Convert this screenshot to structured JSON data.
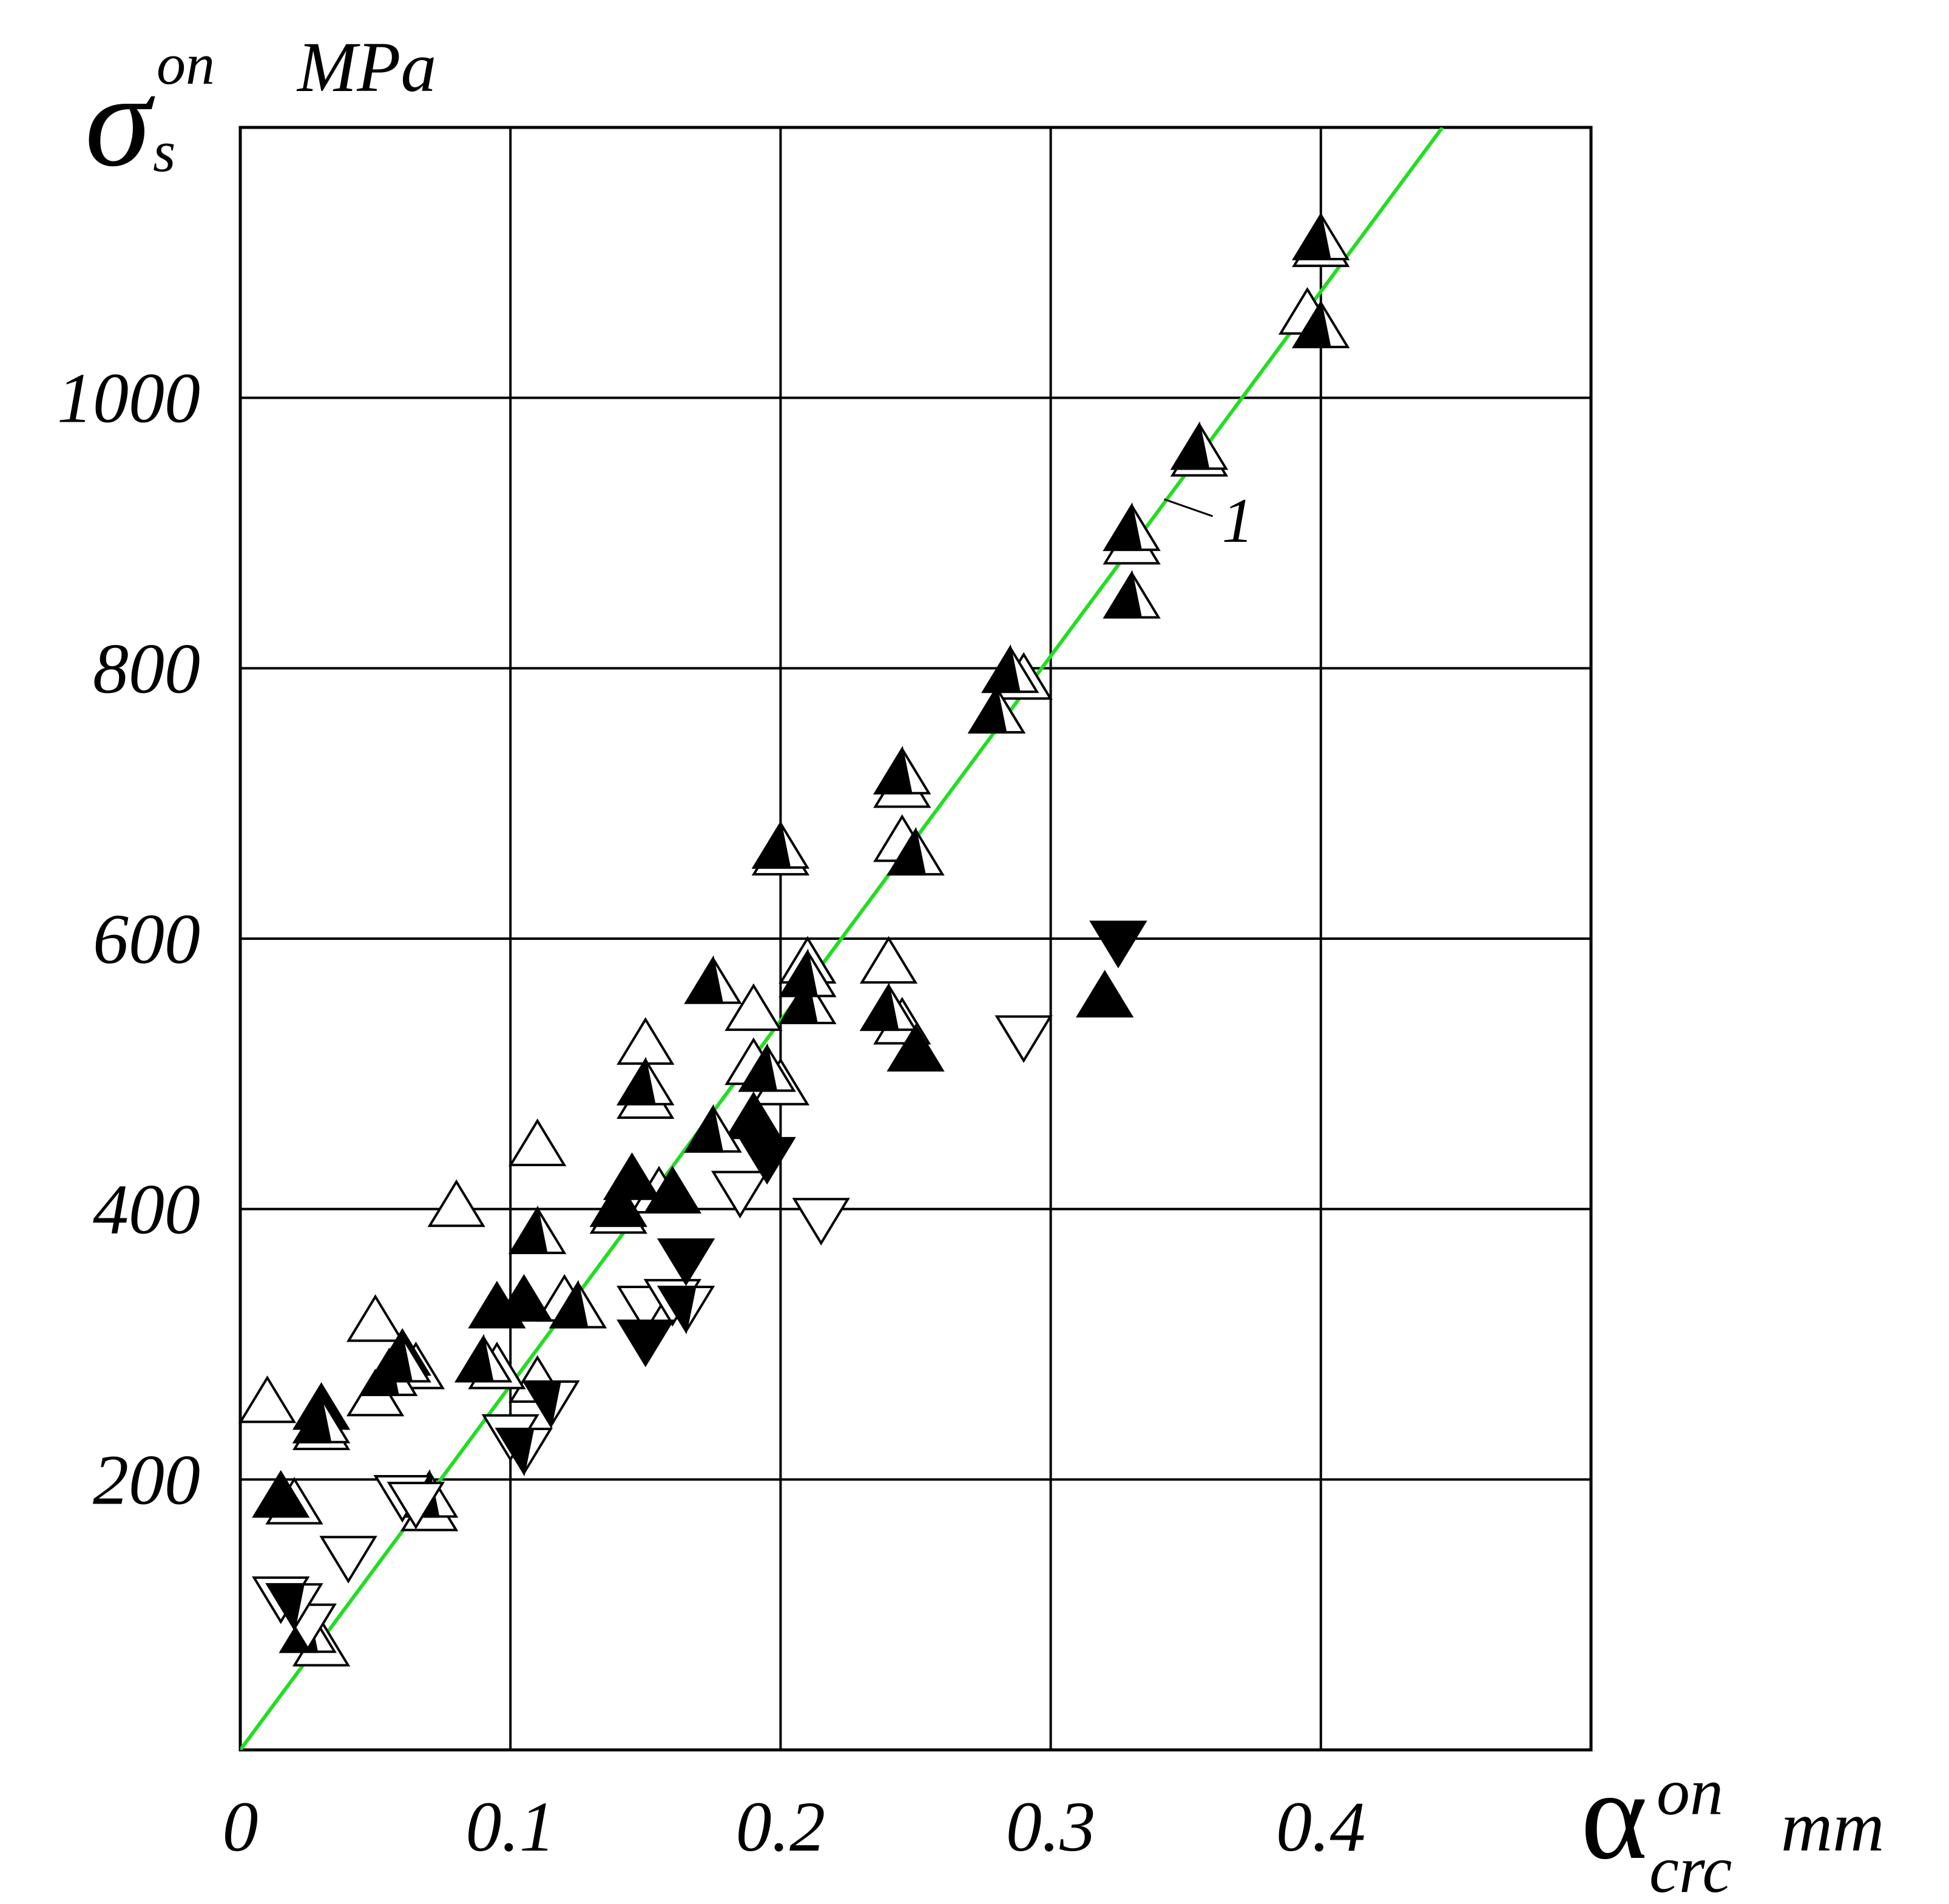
{
  "chart_data": {
    "type": "scatter",
    "y_axis": {
      "symbol": "σ",
      "subscript": "s",
      "superscript": "on",
      "unit": "MPa"
    },
    "x_axis": {
      "symbol": "α",
      "subscript": "crc",
      "superscript": "on",
      "unit": "mm"
    },
    "xlim": [
      0,
      0.5
    ],
    "ylim": [
      0,
      1200
    ],
    "x_ticks": [
      {
        "value": 0,
        "label": "0"
      },
      {
        "value": 0.1,
        "label": "0.1"
      },
      {
        "value": 0.2,
        "label": "0.2"
      },
      {
        "value": 0.3,
        "label": "0.3"
      },
      {
        "value": 0.4,
        "label": "0.4"
      }
    ],
    "y_ticks": [
      {
        "value": 200,
        "label": "200"
      },
      {
        "value": 400,
        "label": "400"
      },
      {
        "value": 600,
        "label": "600"
      },
      {
        "value": 800,
        "label": "800"
      },
      {
        "value": 1000,
        "label": "1000"
      }
    ],
    "grid": true,
    "fit_line": {
      "label": "1",
      "color": "#22dd22",
      "x": [
        0,
        0.445
      ],
      "y": [
        0,
        1200
      ]
    },
    "marker_styles": {
      "open_up": "open up-pointing triangle",
      "filled_up": "filled up-pointing triangle",
      "half_up": "half-filled up-pointing triangle",
      "open_down": "open down-pointing triangle",
      "filled_down": "filled down-pointing triangle",
      "half_down": "half-filled down-pointing triangle"
    },
    "series": [
      {
        "marker": "open_up",
        "points": [
          [
            0.01,
            255
          ],
          [
            0.02,
            180
          ],
          [
            0.03,
            235
          ],
          [
            0.05,
            315
          ],
          [
            0.05,
            260
          ],
          [
            0.065,
            280
          ],
          [
            0.07,
            175
          ],
          [
            0.08,
            400
          ],
          [
            0.11,
            445
          ],
          [
            0.11,
            270
          ],
          [
            0.12,
            330
          ],
          [
            0.15,
            520
          ],
          [
            0.15,
            480
          ],
          [
            0.155,
            410
          ],
          [
            0.14,
            395
          ],
          [
            0.19,
            545
          ],
          [
            0.19,
            505
          ],
          [
            0.2,
            490
          ],
          [
            0.2,
            660
          ],
          [
            0.21,
            580
          ],
          [
            0.24,
            580
          ],
          [
            0.245,
            670
          ],
          [
            0.245,
            535
          ],
          [
            0.245,
            710
          ],
          [
            0.28,
            765
          ],
          [
            0.29,
            790
          ],
          [
            0.33,
            890
          ],
          [
            0.355,
            955
          ],
          [
            0.4,
            1110
          ],
          [
            0.395,
            1060
          ],
          [
            0.03,
            75
          ],
          [
            0.095,
            280
          ]
        ]
      },
      {
        "marker": "filled_up",
        "points": [
          [
            0.015,
            185
          ],
          [
            0.03,
            250
          ],
          [
            0.06,
            290
          ],
          [
            0.095,
            325
          ],
          [
            0.105,
            330
          ],
          [
            0.145,
            420
          ],
          [
            0.16,
            410
          ],
          [
            0.19,
            465
          ],
          [
            0.25,
            515
          ],
          [
            0.32,
            555
          ],
          [
            0.14,
            400
          ]
        ]
      },
      {
        "marker": "half_up",
        "points": [
          [
            0.03,
            240
          ],
          [
            0.025,
            85
          ],
          [
            0.055,
            275
          ],
          [
            0.06,
            285
          ],
          [
            0.07,
            185
          ],
          [
            0.09,
            285
          ],
          [
            0.11,
            380
          ],
          [
            0.125,
            325
          ],
          [
            0.15,
            490
          ],
          [
            0.175,
            565
          ],
          [
            0.175,
            455
          ],
          [
            0.195,
            500
          ],
          [
            0.21,
            550
          ],
          [
            0.21,
            570
          ],
          [
            0.24,
            545
          ],
          [
            0.245,
            720
          ],
          [
            0.25,
            660
          ],
          [
            0.28,
            765
          ],
          [
            0.285,
            795
          ],
          [
            0.33,
            850
          ],
          [
            0.33,
            900
          ],
          [
            0.355,
            960
          ],
          [
            0.4,
            1115
          ],
          [
            0.4,
            1050
          ],
          [
            0.2,
            665
          ]
        ]
      },
      {
        "marker": "open_down",
        "points": [
          [
            0.015,
            115
          ],
          [
            0.025,
            95
          ],
          [
            0.04,
            145
          ],
          [
            0.06,
            190
          ],
          [
            0.065,
            185
          ],
          [
            0.1,
            235
          ],
          [
            0.15,
            330
          ],
          [
            0.185,
            415
          ],
          [
            0.215,
            395
          ],
          [
            0.29,
            530
          ],
          [
            0.16,
            335
          ]
        ]
      },
      {
        "marker": "filled_down",
        "points": [
          [
            0.15,
            305
          ],
          [
            0.165,
            365
          ],
          [
            0.195,
            440
          ],
          [
            0.325,
            600
          ]
        ]
      },
      {
        "marker": "half_down",
        "points": [
          [
            0.02,
            110
          ],
          [
            0.105,
            225
          ],
          [
            0.115,
            260
          ],
          [
            0.165,
            330
          ]
        ]
      }
    ]
  }
}
